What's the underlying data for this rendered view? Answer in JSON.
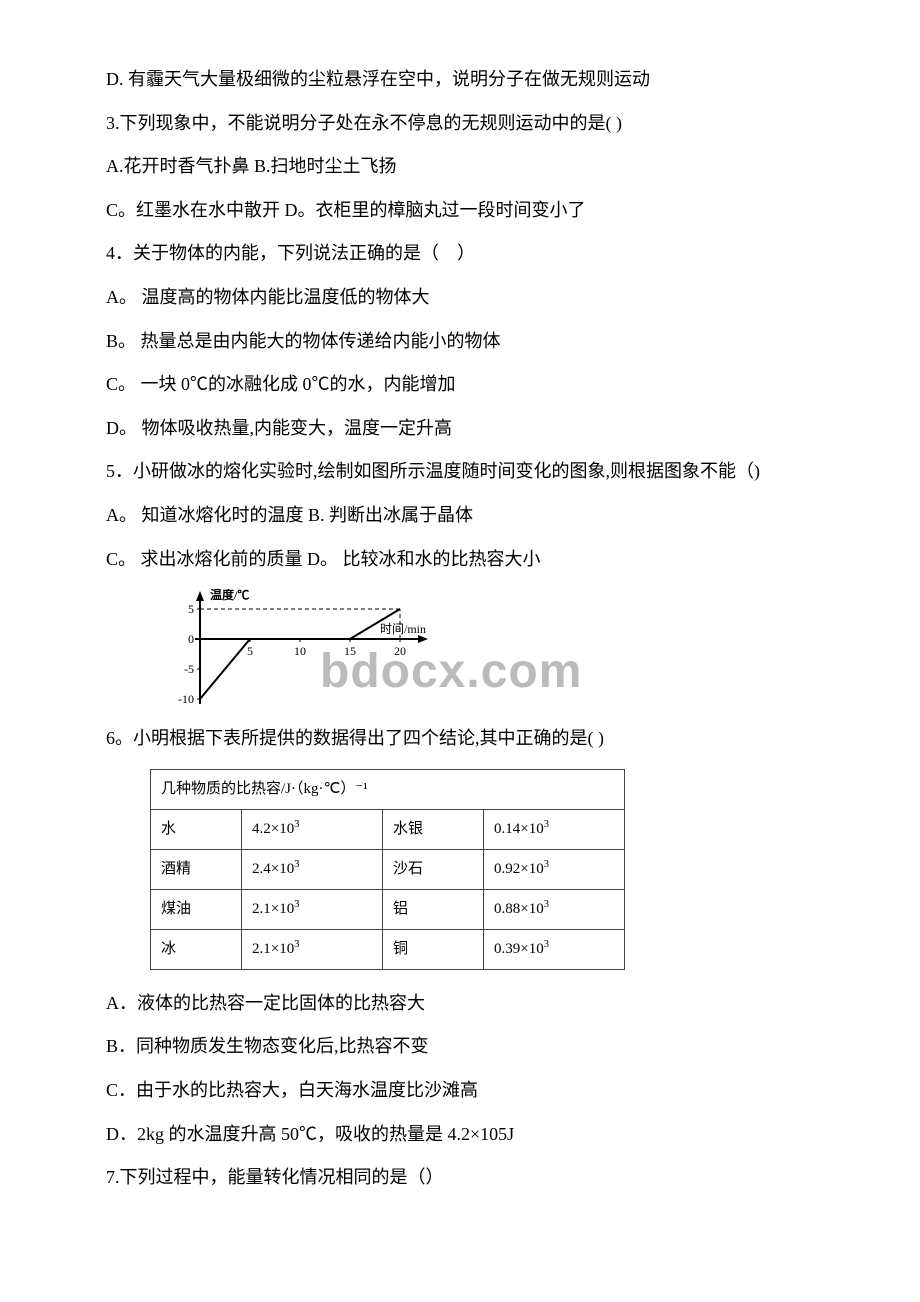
{
  "paragraphs": {
    "q2d": "D. 有霾天气大量极细微的尘粒悬浮在空中，说明分子在做无规则运动",
    "q3": "3.下列现象中，不能说明分子处在永不停息的无规则运动中的是(  )",
    "q3ab": "A.花开时香气扑鼻 B.扫地时尘土飞扬",
    "q3cd": "C。红墨水在水中散开 D。衣柜里的樟脑丸过一段时间变小了",
    "q4": "4．关于物体的内能，下列说法正确的是（　）",
    "q4a": "A。 温度高的物体内能比温度低的物体大",
    "q4b": "B。 热量总是由内能大的物体传递给内能小的物体",
    "q4c": "C。 一块 0℃的冰融化成 0℃的水，内能增加",
    "q4d": "D。 物体吸收热量,内能变大，温度一定升高",
    "q5": "5．小研做冰的熔化实验时,绘制如图所示温度随时间变化的图象,则根据图象不能（)",
    "q5ab": "A。 知道冰熔化时的温度 B. 判断出冰属于晶体",
    "q5cd": "C。 求出冰熔化前的质量 D。 比较冰和水的比热容大小",
    "q6": "6。小明根据下表所提供的数据得出了四个结论,其中正确的是(  )",
    "q6a": "A．液体的比热容一定比固体的比热容大",
    "q6b": "B．同种物质发生物态变化后,比热容不变",
    "q6c": "C．由于水的比热容大，白天海水温度比沙滩高",
    "q6d": "D．2kg 的水温度升高 50℃，吸收的热量是 4.2×105J",
    "q7": "7.下列过程中，能量转化情况相同的是（）"
  },
  "chart": {
    "y_label": "温度/℃",
    "x_label": "时间/min",
    "y_ticks": [
      -10,
      -5,
      0,
      5
    ],
    "x_ticks": [
      5,
      10,
      15,
      20
    ],
    "line_points": [
      {
        "x": 0,
        "y": -10
      },
      {
        "x": 5,
        "y": 0
      },
      {
        "x": 15,
        "y": 0
      },
      {
        "x": 20,
        "y": 5
      }
    ],
    "axis_color": "#000000",
    "line_color": "#000000",
    "dash_color": "#000000",
    "background": "#ffffff",
    "font_size": 12,
    "line_width": 2
  },
  "table": {
    "header": "几种物质的比热容/J·（kg·℃）⁻¹",
    "rows": [
      [
        "水",
        "4.2×10³",
        "水银",
        "0.14×10³"
      ],
      [
        "酒精",
        "2.4×10³",
        "沙石",
        "0.92×10³"
      ],
      [
        "煤油",
        "2.1×10³",
        "铝",
        "0.88×10³"
      ],
      [
        "冰",
        "2.1×10³",
        "铜",
        "0.39×10³"
      ]
    ],
    "border_color": "#444444",
    "font_size": 15
  },
  "watermark": "bdocx.com"
}
